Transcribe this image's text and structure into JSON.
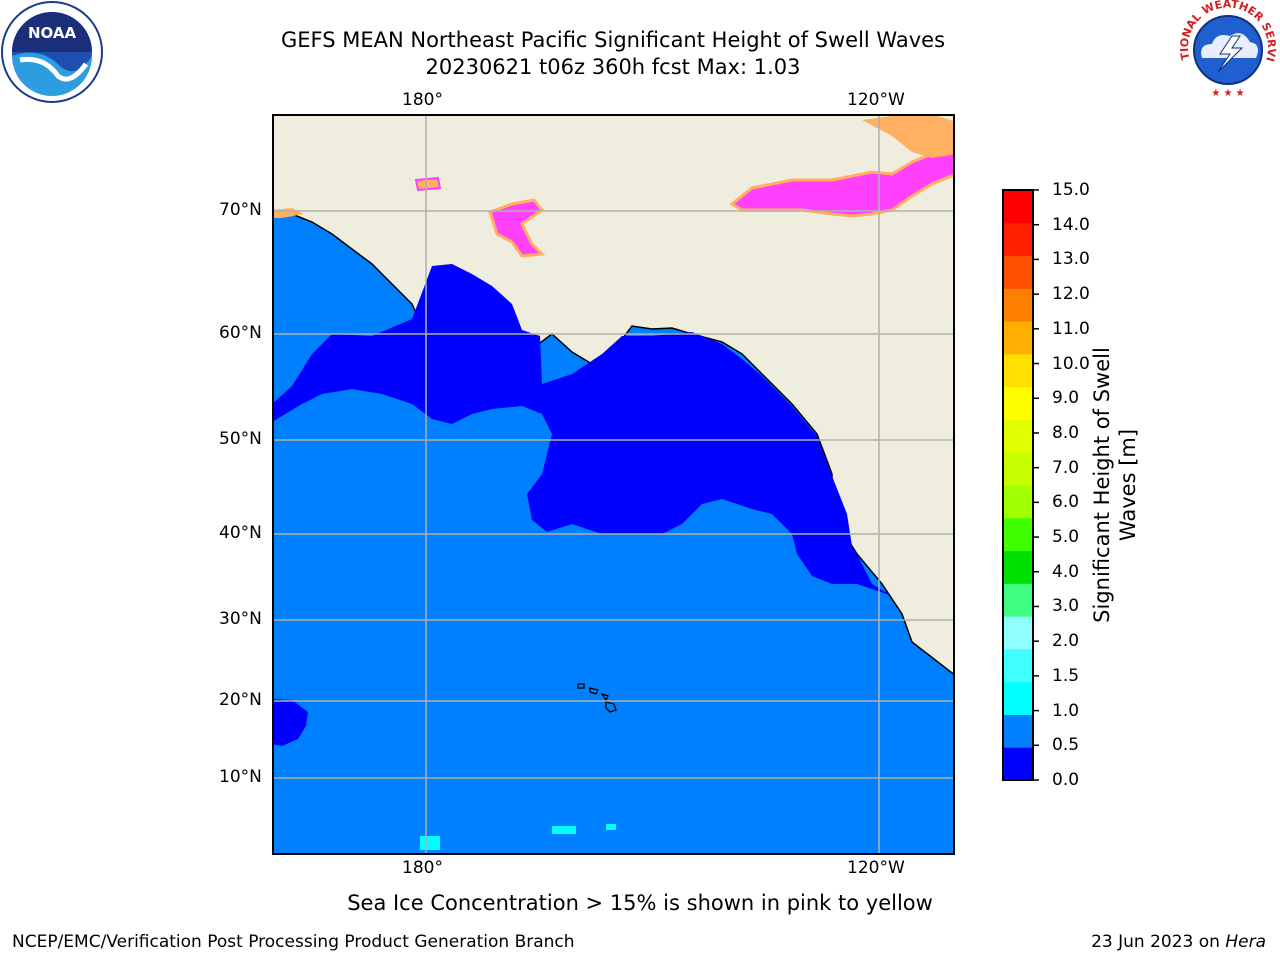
{
  "header": {
    "title_line1": "GEFS MEAN Northeast Pacific Significant Height of Swell Waves",
    "title_line2": "20230621 t06z 360h fcst   Max: 1.03"
  },
  "logos": {
    "noaa_text": "NOAA",
    "nws_text": "NATIONAL WEATHER SERVICE"
  },
  "map": {
    "lon_labels": [
      "180°",
      "120°W"
    ],
    "lat_labels": [
      "70°N",
      "60°N",
      "50°N",
      "40°N",
      "30°N",
      "20°N",
      "10°N"
    ],
    "colors": {
      "ocean_low": "#0000ff",
      "ocean_mid": "#0080ff",
      "land": "#efedde",
      "grid": "#b0b0b0",
      "ice_pink": "#ff40ff",
      "ice_orange": "#ffb060"
    }
  },
  "colorbar": {
    "label": "Significant Height of Swell Waves [m]",
    "ticks": [
      "15.0",
      "14.0",
      "13.0",
      "12.0",
      "11.0",
      "10.0",
      "9.0",
      "8.0",
      "7.0",
      "6.0",
      "5.0",
      "4.0",
      "3.0",
      "2.0",
      "1.5",
      "1.0",
      "0.5",
      "0.0"
    ],
    "colors": [
      "#0000ff",
      "#0080ff",
      "#00ffff",
      "#40ffff",
      "#90ffff",
      "#40ff80",
      "#00e000",
      "#40ff00",
      "#a0ff00",
      "#c8ff00",
      "#e0ff00",
      "#ffff00",
      "#ffe000",
      "#ffb000",
      "#ff8000",
      "#ff5000",
      "#ff2000",
      "#ff0000"
    ]
  },
  "caption": "Sea Ice Concentration > 15% is shown in pink to yellow",
  "footer": {
    "left": "NCEP/EMC/Verification Post Processing Product Generation Branch",
    "right_date": "23 Jun 2023 on ",
    "right_host": "Hera"
  }
}
